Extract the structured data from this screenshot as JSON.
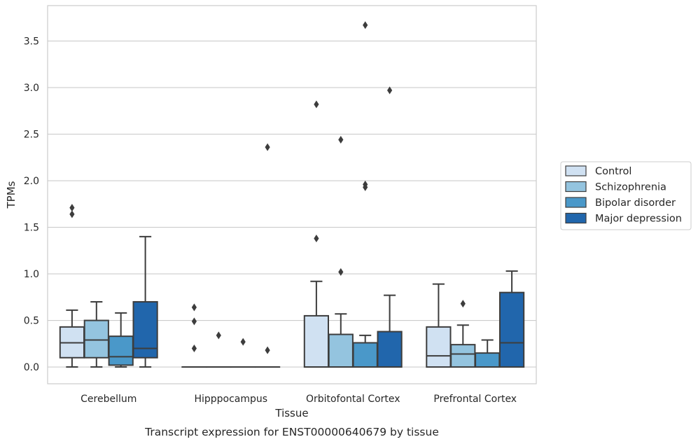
{
  "chart_data": {
    "type": "box",
    "caption": "Transcript expression for ENST00000640679 by tissue",
    "xlabel": "Tissue",
    "ylabel": "TPMs",
    "ylim": [
      -0.18,
      3.88
    ],
    "yticks": [
      "0.0",
      "0.5",
      "1.0",
      "1.5",
      "2.0",
      "2.5",
      "3.0",
      "3.5"
    ],
    "grid": "horizontal",
    "legend_position": "right",
    "categories": [
      "Cerebellum",
      "Hipppocampus",
      "Orbitofontal Cortex",
      "Prefrontal Cortex"
    ],
    "series": [
      {
        "name": "Control",
        "color": "#d0e1f2",
        "boxes": [
          {
            "whislo": 0.0,
            "q1": 0.1,
            "med": 0.26,
            "q3": 0.43,
            "whishi": 0.61,
            "fliers": [
              1.71,
              1.64
            ]
          },
          {
            "whislo": 0.0,
            "q1": 0.0,
            "med": 0.0,
            "q3": 0.0,
            "whishi": 0.0,
            "fliers": [
              0.64,
              0.49,
              0.2
            ]
          },
          {
            "whislo": 0.0,
            "q1": 0.0,
            "med": 0.0,
            "q3": 0.55,
            "whishi": 0.92,
            "fliers": [
              2.82,
              1.38
            ]
          },
          {
            "whislo": 0.0,
            "q1": 0.0,
            "med": 0.12,
            "q3": 0.43,
            "whishi": 0.89,
            "fliers": []
          }
        ]
      },
      {
        "name": "Schizophrenia",
        "color": "#94c4df",
        "boxes": [
          {
            "whislo": 0.0,
            "q1": 0.1,
            "med": 0.29,
            "q3": 0.5,
            "whishi": 0.7,
            "fliers": []
          },
          {
            "whislo": 0.0,
            "q1": 0.0,
            "med": 0.0,
            "q3": 0.0,
            "whishi": 0.0,
            "fliers": [
              0.34
            ]
          },
          {
            "whislo": 0.0,
            "q1": 0.0,
            "med": 0.0,
            "q3": 0.35,
            "whishi": 0.57,
            "fliers": [
              2.44,
              1.02
            ]
          },
          {
            "whislo": 0.0,
            "q1": 0.0,
            "med": 0.14,
            "q3": 0.24,
            "whishi": 0.45,
            "fliers": [
              0.68
            ]
          }
        ]
      },
      {
        "name": "Bipolar disorder",
        "color": "#4a98c9",
        "boxes": [
          {
            "whislo": 0.0,
            "q1": 0.02,
            "med": 0.11,
            "q3": 0.33,
            "whishi": 0.58,
            "fliers": []
          },
          {
            "whislo": 0.0,
            "q1": 0.0,
            "med": 0.0,
            "q3": 0.0,
            "whishi": 0.0,
            "fliers": [
              0.27
            ]
          },
          {
            "whislo": 0.0,
            "q1": 0.0,
            "med": 0.0,
            "q3": 0.26,
            "whishi": 0.34,
            "fliers": [
              3.67,
              1.96,
              1.93
            ]
          },
          {
            "whislo": 0.0,
            "q1": 0.0,
            "med": 0.0,
            "q3": 0.15,
            "whishi": 0.29,
            "fliers": []
          }
        ]
      },
      {
        "name": "Major depression",
        "color": "#2166ac",
        "boxes": [
          {
            "whislo": 0.0,
            "q1": 0.1,
            "med": 0.2,
            "q3": 0.7,
            "whishi": 1.4,
            "fliers": []
          },
          {
            "whislo": 0.0,
            "q1": 0.0,
            "med": 0.0,
            "q3": 0.0,
            "whishi": 0.0,
            "fliers": [
              2.36,
              0.18
            ]
          },
          {
            "whislo": 0.0,
            "q1": 0.0,
            "med": 0.0,
            "q3": 0.38,
            "whishi": 0.77,
            "fliers": [
              2.97
            ]
          },
          {
            "whislo": 0.0,
            "q1": 0.0,
            "med": 0.26,
            "q3": 0.8,
            "whishi": 1.03,
            "fliers": []
          }
        ]
      }
    ]
  }
}
